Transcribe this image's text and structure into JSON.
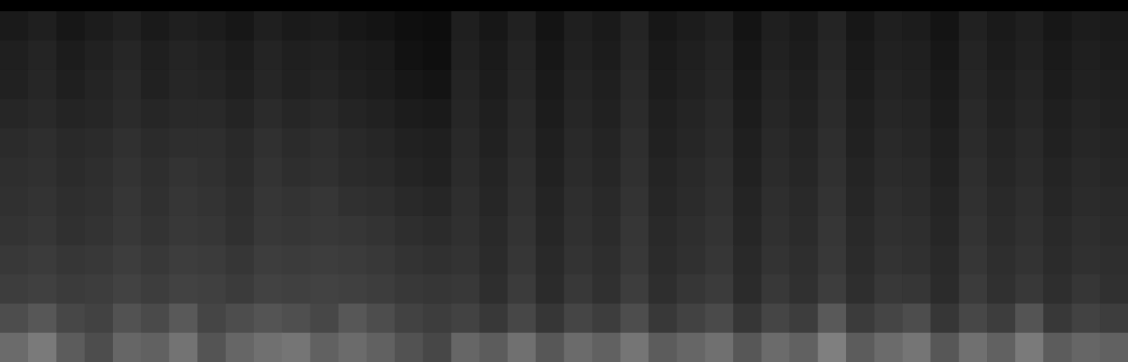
{
  "chart_data": {
    "type": "heatmap",
    "tick_labels": false,
    "xlim": [
      0,
      40
    ],
    "ylim": [
      0,
      12
    ],
    "xticks": [],
    "yticks": [],
    "cells": [
      [
        10,
        12,
        9,
        11,
        13,
        10,
        12,
        11,
        9,
        12,
        10,
        11,
        9,
        8,
        6,
        5,
        12,
        9,
        13,
        8,
        12,
        10,
        14,
        9,
        11,
        13,
        8,
        12,
        10,
        14,
        9,
        12,
        11,
        8,
        13,
        10,
        12,
        9,
        11,
        10
      ],
      [
        12,
        14,
        11,
        13,
        15,
        12,
        14,
        13,
        11,
        14,
        12,
        13,
        11,
        10,
        7,
        6,
        13,
        10,
        14,
        9,
        13,
        11,
        15,
        10,
        12,
        14,
        9,
        13,
        11,
        15,
        10,
        13,
        12,
        9,
        14,
        11,
        13,
        10,
        12,
        11
      ],
      [
        13,
        15,
        12,
        14,
        16,
        13,
        15,
        14,
        12,
        15,
        13,
        14,
        12,
        11,
        9,
        8,
        14,
        11,
        15,
        10,
        14,
        12,
        16,
        11,
        13,
        15,
        10,
        14,
        12,
        16,
        11,
        14,
        13,
        10,
        15,
        12,
        14,
        11,
        13,
        12
      ],
      [
        15,
        16,
        14,
        15,
        17,
        15,
        16,
        16,
        14,
        17,
        15,
        16,
        14,
        13,
        11,
        10,
        15,
        12,
        16,
        11,
        15,
        13,
        17,
        12,
        14,
        16,
        11,
        15,
        13,
        17,
        12,
        15,
        14,
        11,
        16,
        13,
        15,
        12,
        14,
        13
      ],
      [
        17,
        18,
        16,
        17,
        19,
        17,
        18,
        18,
        16,
        19,
        17,
        18,
        16,
        15,
        13,
        12,
        16,
        13,
        17,
        12,
        16,
        14,
        18,
        13,
        15,
        17,
        12,
        16,
        14,
        18,
        13,
        16,
        15,
        12,
        17,
        14,
        16,
        13,
        15,
        14
      ],
      [
        18,
        19,
        17,
        18,
        20,
        18,
        20,
        19,
        17,
        20,
        18,
        19,
        17,
        16,
        14,
        13,
        17,
        14,
        18,
        13,
        17,
        15,
        19,
        14,
        16,
        18,
        13,
        17,
        15,
        19,
        14,
        17,
        16,
        13,
        18,
        15,
        17,
        14,
        16,
        15
      ],
      [
        19,
        20,
        18,
        19,
        21,
        19,
        21,
        20,
        18,
        21,
        20,
        21,
        19,
        18,
        16,
        15,
        18,
        15,
        19,
        14,
        18,
        16,
        20,
        15,
        17,
        19,
        14,
        18,
        16,
        20,
        15,
        18,
        17,
        14,
        19,
        16,
        18,
        15,
        17,
        16
      ],
      [
        20,
        21,
        19,
        20,
        22,
        20,
        22,
        21,
        19,
        22,
        21,
        22,
        21,
        20,
        18,
        17,
        19,
        16,
        20,
        15,
        19,
        17,
        21,
        16,
        18,
        20,
        15,
        19,
        17,
        21,
        16,
        19,
        18,
        15,
        20,
        17,
        19,
        16,
        18,
        17
      ],
      [
        22,
        23,
        21,
        22,
        24,
        22,
        24,
        23,
        21,
        24,
        23,
        24,
        23,
        22,
        20,
        19,
        20,
        17,
        21,
        16,
        20,
        18,
        22,
        17,
        19,
        21,
        16,
        20,
        18,
        22,
        17,
        20,
        19,
        16,
        21,
        18,
        20,
        17,
        19,
        18
      ],
      [
        24,
        25,
        23,
        24,
        26,
        24,
        26,
        25,
        23,
        26,
        25,
        26,
        25,
        24,
        22,
        21,
        22,
        18,
        23,
        17,
        22,
        19,
        24,
        18,
        21,
        23,
        17,
        22,
        19,
        24,
        18,
        22,
        21,
        17,
        23,
        19,
        22,
        18,
        21,
        19
      ],
      [
        30,
        34,
        28,
        26,
        32,
        29,
        35,
        27,
        30,
        33,
        31,
        28,
        34,
        30,
        26,
        24,
        26,
        22,
        28,
        21,
        27,
        24,
        30,
        22,
        26,
        29,
        21,
        27,
        24,
        35,
        23,
        27,
        30,
        21,
        28,
        24,
        33,
        22,
        26,
        24
      ],
      [
        42,
        48,
        36,
        30,
        40,
        38,
        45,
        33,
        40,
        44,
        46,
        38,
        42,
        38,
        32,
        28,
        40,
        36,
        44,
        34,
        42,
        38,
        46,
        36,
        40,
        44,
        34,
        42,
        38,
        50,
        36,
        42,
        46,
        34,
        44,
        38,
        48,
        36,
        40,
        38
      ]
    ]
  }
}
